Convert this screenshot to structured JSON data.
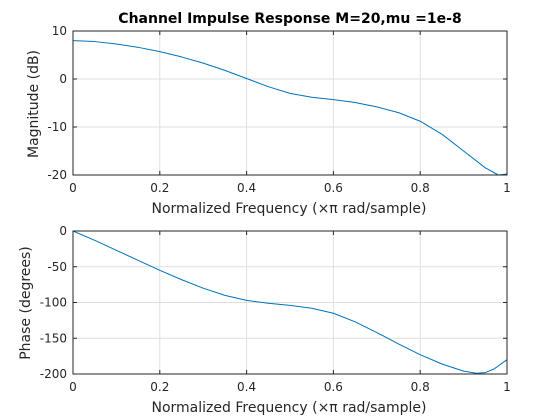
{
  "chart_data": [
    {
      "type": "line",
      "title": "Channel Impulse Response M=20,mu =1e-8",
      "xlabel": "Normalized Frequency  (×π rad/sample)",
      "ylabel": "Magnitude (dB)",
      "xlim": [
        0,
        1
      ],
      "ylim": [
        -20,
        10
      ],
      "xticks": [
        0,
        0.2,
        0.4,
        0.6,
        0.8,
        1
      ],
      "yticks": [
        -20,
        -10,
        0,
        10
      ],
      "grid": true,
      "line_color": "#0072BD",
      "series": [
        {
          "x": [
            0,
            0.05,
            0.1,
            0.15,
            0.2,
            0.25,
            0.3,
            0.35,
            0.4,
            0.45,
            0.5,
            0.55,
            0.6,
            0.65,
            0.7,
            0.75,
            0.8,
            0.85,
            0.9,
            0.95,
            0.98,
            1.0
          ],
          "values": [
            8.0,
            7.8,
            7.3,
            6.6,
            5.7,
            4.6,
            3.3,
            1.8,
            0.1,
            -1.6,
            -3.0,
            -3.8,
            -4.3,
            -4.9,
            -5.8,
            -7.0,
            -8.8,
            -11.5,
            -15.0,
            -18.5,
            -20.0,
            -19.8
          ]
        }
      ]
    },
    {
      "type": "line",
      "title": "",
      "xlabel": "Normalized Frequency  (×π rad/sample)",
      "ylabel": "Phase (degrees)",
      "xlim": [
        0,
        1
      ],
      "ylim": [
        -200,
        0
      ],
      "xticks": [
        0,
        0.2,
        0.4,
        0.6,
        0.8,
        1
      ],
      "yticks": [
        -200,
        -150,
        -100,
        -50,
        0
      ],
      "grid": true,
      "line_color": "#0072BD",
      "series": [
        {
          "x": [
            0,
            0.05,
            0.1,
            0.15,
            0.2,
            0.25,
            0.3,
            0.35,
            0.4,
            0.45,
            0.5,
            0.55,
            0.6,
            0.65,
            0.7,
            0.75,
            0.8,
            0.85,
            0.9,
            0.93,
            0.95,
            0.97,
            1.0
          ],
          "values": [
            0,
            -13,
            -27,
            -41,
            -55,
            -68,
            -80,
            -90,
            -97,
            -101,
            -104,
            -108,
            -115,
            -127,
            -142,
            -158,
            -173,
            -186,
            -196,
            -199,
            -198,
            -193,
            -180
          ]
        }
      ]
    }
  ]
}
